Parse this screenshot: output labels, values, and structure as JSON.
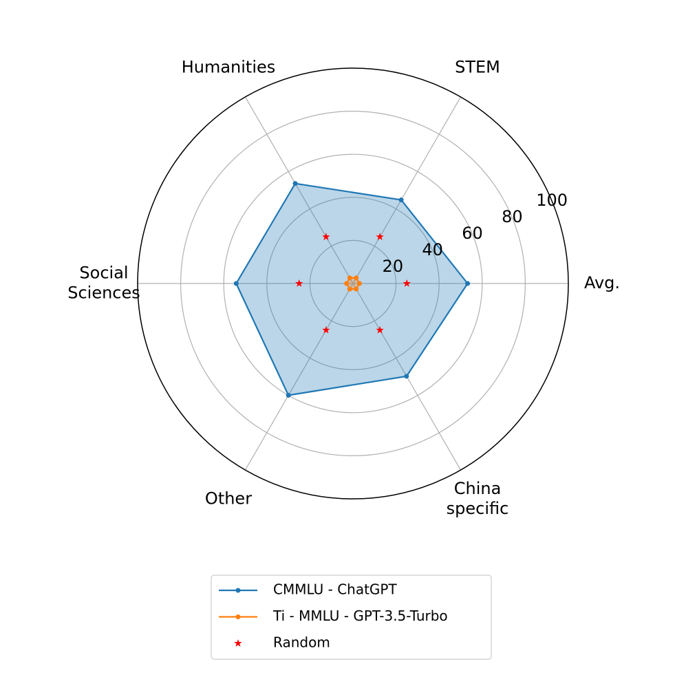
{
  "chart_data": {
    "type": "radar",
    "categories": [
      "Avg.",
      "STEM",
      "Humanities",
      "Social\nSciences",
      "Other",
      "China\nspecific"
    ],
    "series": [
      {
        "name": "CMMLU - ChatGPT",
        "color": "#1f77b4",
        "marker": "dot",
        "line": true,
        "fill": true,
        "values": [
          53.22,
          44.8,
          53.61,
          54.22,
          59.95,
          49.74
        ]
      },
      {
        "name": "Ti - MMLU - GPT-3.5-Turbo",
        "color": "#ff7f0e",
        "marker": "dot",
        "line": true,
        "fill": true,
        "values": [
          3,
          3,
          3,
          3,
          3,
          3
        ]
      },
      {
        "name": "Random",
        "color": "#ff0000",
        "marker": "star",
        "line": false,
        "fill": false,
        "values": [
          25,
          25,
          25,
          25,
          25,
          25
        ]
      }
    ],
    "ylim": [
      0,
      100
    ],
    "yticks": [
      20,
      40,
      60,
      80,
      100
    ],
    "grid": true
  }
}
